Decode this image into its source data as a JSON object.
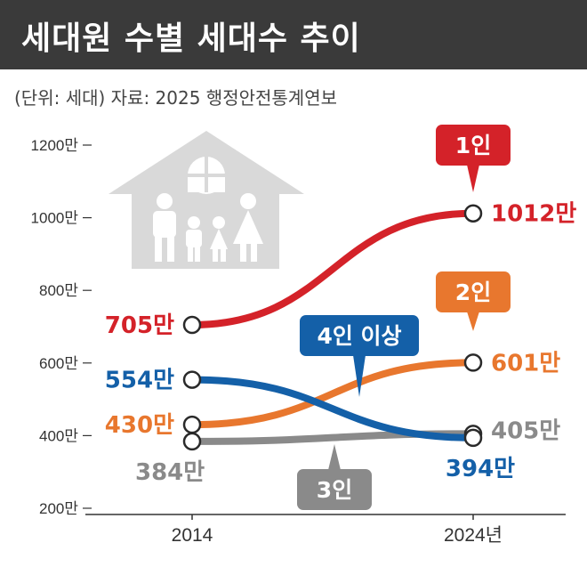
{
  "title": "세대원 수별 세대수 추이",
  "subtitle": "(단위: 세대) 자료: 2025 행정안전통계연보",
  "chart_data": {
    "type": "line",
    "x": [
      "2014",
      "2024년"
    ],
    "ylim": [
      200,
      1200
    ],
    "y_ticks": [
      {
        "value": 1200,
        "label": "1200만"
      },
      {
        "value": 1000,
        "label": "1000만"
      },
      {
        "value": 800,
        "label": "800만"
      },
      {
        "value": 600,
        "label": "600만"
      },
      {
        "value": 400,
        "label": "400만"
      },
      {
        "value": 200,
        "label": "200만"
      }
    ],
    "unit": "만",
    "legend": "callouts",
    "grid": false,
    "series": [
      {
        "name": "1인",
        "color": "#d42229",
        "values": [
          705,
          1012
        ],
        "labels": [
          "705만",
          "1012만"
        ]
      },
      {
        "name": "2인",
        "color": "#e8772e",
        "values": [
          430,
          601
        ],
        "labels": [
          "430만",
          "601만"
        ]
      },
      {
        "name": "3인",
        "color": "#8a8a8a",
        "values": [
          384,
          405
        ],
        "labels": [
          "384만",
          "405만"
        ]
      },
      {
        "name": "4인 이상",
        "color": "#1460a8",
        "values": [
          554,
          394
        ],
        "labels": [
          "554만",
          "394만"
        ]
      }
    ]
  },
  "colors": {
    "title_bar": "#3a3a3a",
    "house": "#d9d9d9",
    "axis": "#333333",
    "tick_label": "#333333"
  },
  "illustration": "house-family-icon"
}
